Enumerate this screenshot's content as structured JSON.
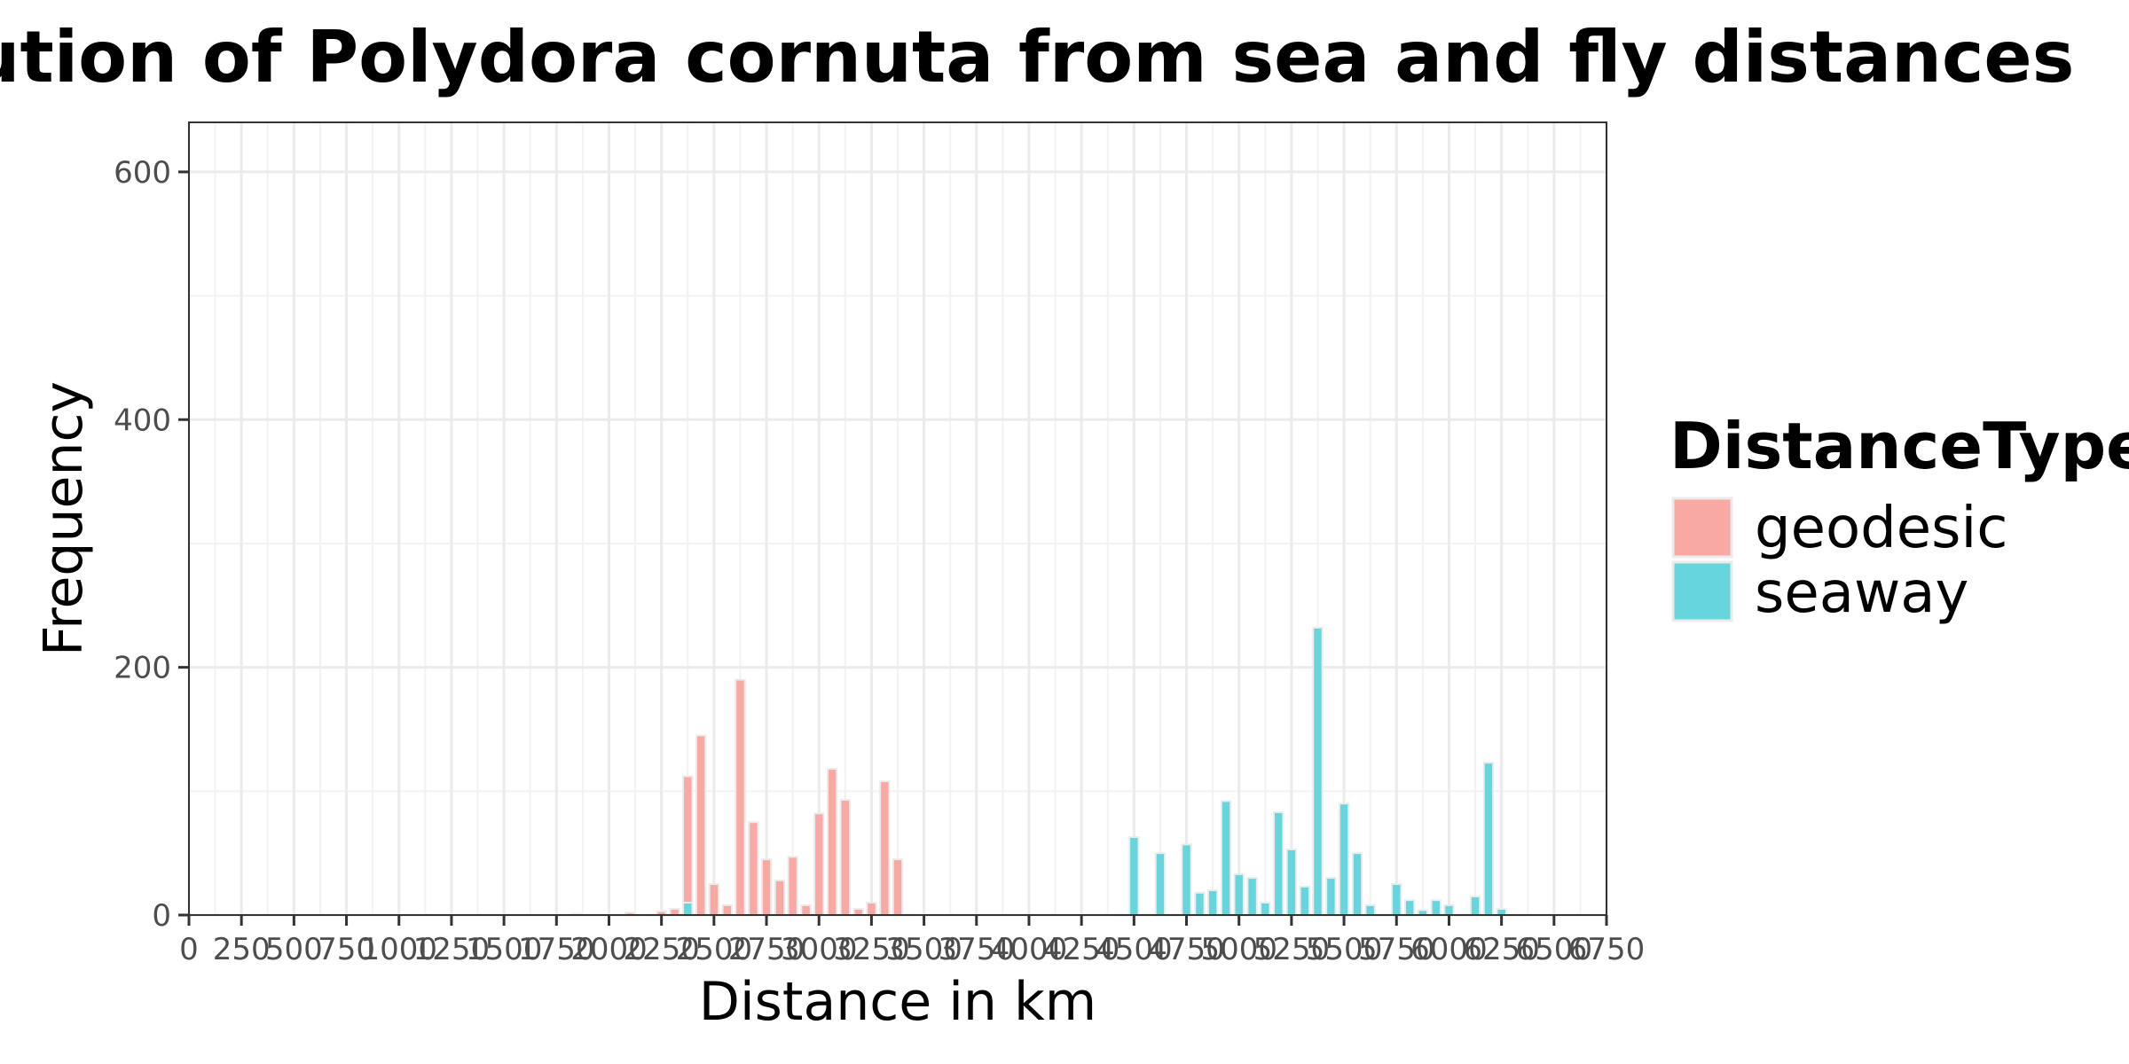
{
  "chart_data": {
    "type": "bar",
    "title": "Distribution of Polydora cornuta from sea and fly distances",
    "xlabel": "Distance in km",
    "ylabel": "Frequency",
    "xlim": [
      0,
      6750
    ],
    "ylim": [
      0,
      640
    ],
    "bin_width": 62.5,
    "grid": true,
    "legend_position": "right",
    "x_ticks": [
      0,
      250,
      500,
      750,
      1000,
      1250,
      1500,
      1750,
      2000,
      2250,
      2500,
      2750,
      3000,
      3250,
      3500,
      3750,
      4000,
      4250,
      4500,
      4750,
      5000,
      5250,
      5500,
      5750,
      6000,
      6250,
      6500,
      6750
    ],
    "y_ticks": [
      0,
      200,
      400,
      600
    ],
    "legend": {
      "title": "DistanceType",
      "entries": [
        {
          "label": "geodesic",
          "color": "#F8A9A3"
        },
        {
          "label": "seaway",
          "color": "#66D6DC"
        }
      ]
    },
    "series": [
      {
        "name": "geodesic",
        "color": "#F8A9A3",
        "x": [
          1850,
          2100,
          2250,
          2313,
          2375,
          2438,
          2500,
          2563,
          2625,
          2688,
          2750,
          2813,
          2875,
          2938,
          3000,
          3063,
          3125,
          3188,
          3250,
          3313,
          3375
        ],
        "values": [
          1,
          2,
          3,
          5,
          112,
          145,
          25,
          8,
          190,
          75,
          45,
          28,
          47,
          8,
          82,
          118,
          93,
          5,
          10,
          108,
          45
        ]
      },
      {
        "name": "seaway",
        "color": "#66D6DC",
        "x": [
          2375,
          4500,
          4625,
          4750,
          4813,
          4875,
          4938,
          5000,
          5063,
          5125,
          5188,
          5250,
          5313,
          5375,
          5438,
          5500,
          5563,
          5625,
          5750,
          5813,
          5875,
          5938,
          6000,
          6125,
          6188,
          6250
        ],
        "values": [
          10,
          63,
          50,
          57,
          18,
          20,
          92,
          33,
          30,
          10,
          83,
          53,
          23,
          232,
          30,
          90,
          50,
          8,
          25,
          12,
          4,
          12,
          8,
          15,
          123,
          5
        ]
      }
    ]
  }
}
